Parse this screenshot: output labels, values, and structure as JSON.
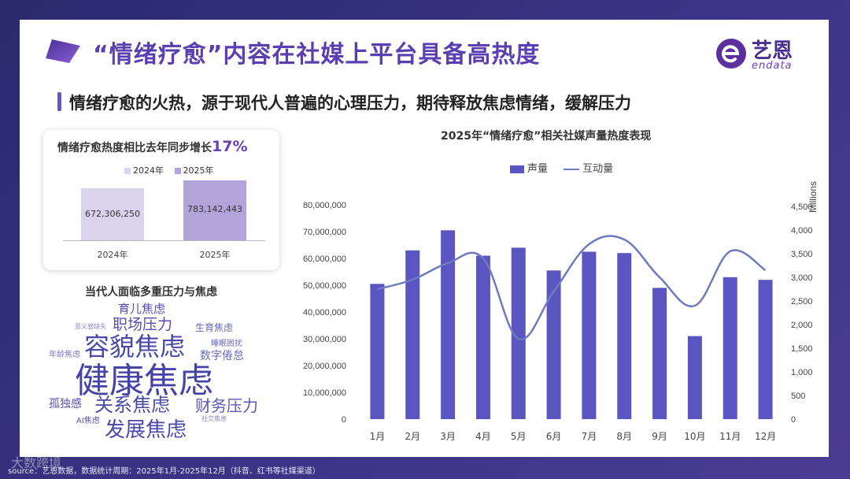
{
  "header": {
    "title": "“情绪疗愈”内容在社媒上平台具备高热度",
    "subtitle": "情绪疗愈的火热，源于现代人普遍的心理压力，期待释放焦虑情绪，缓解压力"
  },
  "brand": {
    "name_cn": "艺恩",
    "name_en": "endata",
    "color": "#5b2f9e"
  },
  "growth_card": {
    "title": "情绪疗愈热度相比去年同步增长",
    "percent": "17%",
    "legend": [
      "2024年",
      "2025年"
    ],
    "bars": [
      {
        "category": "2024年",
        "value": 672306250,
        "label": "672,306,250",
        "color": "#d9d3ee"
      },
      {
        "category": "2025年",
        "value": 783142443,
        "label": "783,142,443",
        "color": "#b3a3db"
      }
    ]
  },
  "word_cloud": {
    "title": "当代人面临多重压力与焦虑",
    "words": [
      "育儿焦虑",
      "职场压力",
      "生育焦虑",
      "意义感缺失",
      "容貌焦虑",
      "睡眠困扰",
      "年龄焦虑",
      "数字倦怠",
      "健康焦虑",
      "孤独感",
      "关系焦虑",
      "财务压力",
      "AI焦虑",
      "社交焦虑",
      "发展焦虑"
    ]
  },
  "chart_data": {
    "type": "bar",
    "title": "2025年“情绪疗愈”相关社媒声量热度表现",
    "categories": [
      "1月",
      "2月",
      "3月",
      "4月",
      "5月",
      "6月",
      "7月",
      "8月",
      "9月",
      "10月",
      "11月",
      "12月"
    ],
    "series": [
      {
        "name": "声量",
        "type": "bar",
        "axis": "left",
        "color": "#5b55c2",
        "values": [
          50500000,
          63000000,
          70500000,
          61000000,
          64000000,
          55500000,
          62500000,
          62000000,
          49000000,
          31000000,
          53000000,
          52000000
        ]
      },
      {
        "name": "互动量",
        "type": "line",
        "axis": "right",
        "color": "#6e7bbf",
        "values": [
          2750,
          2950,
          3300,
          3400,
          1700,
          2700,
          3700,
          3800,
          3000,
          2400,
          3550,
          3150
        ]
      }
    ],
    "left_axis": {
      "ticks": [
        "80,000,000",
        "70,000,000",
        "60,000,000",
        "50,000,000",
        "40,000,000",
        "30,000,000",
        "20,000,000",
        "10,000,000",
        "0"
      ],
      "ylim": [
        0,
        80000000
      ]
    },
    "right_axis": {
      "label": "Millions",
      "ticks": [
        "4,500",
        "4,000",
        "3,500",
        "3,000",
        "2,500",
        "2,000",
        "1,500",
        "1,000",
        "500",
        "0"
      ],
      "ylim": [
        0,
        4500
      ]
    },
    "legend_position": "top"
  },
  "footer": {
    "source": "source：艺恩数据，数据统计周期：2025年1月-2025年12月（抖音、红书等社媒渠道）",
    "watermark": "大数跨境"
  }
}
